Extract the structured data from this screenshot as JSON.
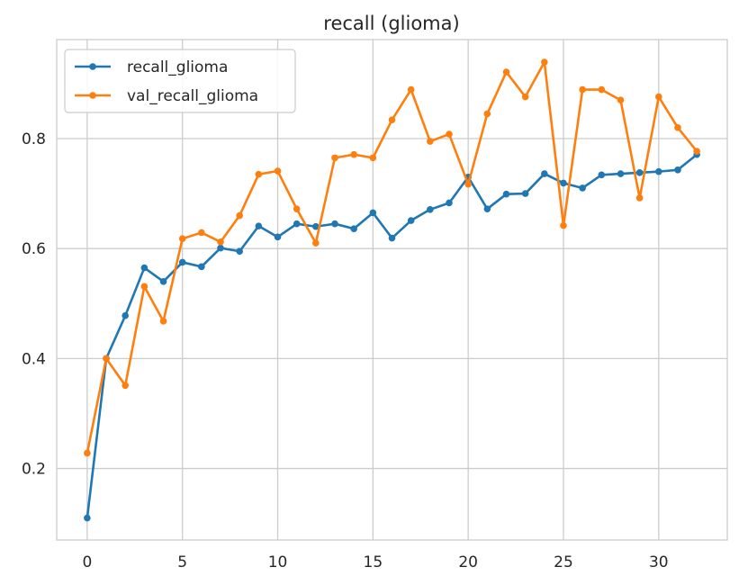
{
  "chart_data": {
    "type": "line",
    "title": "recall (glioma)",
    "xlabel": "",
    "ylabel": "",
    "xlim": [
      -1.6,
      33.6
    ],
    "ylim": [
      0.07,
      0.98
    ],
    "xticks": [
      0,
      5,
      10,
      15,
      20,
      25,
      30
    ],
    "yticks": [
      0.2,
      0.4,
      0.6,
      0.8
    ],
    "xtick_labels": [
      "0",
      "5",
      "10",
      "15",
      "20",
      "25",
      "30"
    ],
    "ytick_labels": [
      "0.2",
      "0.4",
      "0.6",
      "0.8"
    ],
    "grid": true,
    "legend_position": "upper-left",
    "x": [
      0,
      1,
      2,
      3,
      4,
      5,
      6,
      7,
      8,
      9,
      10,
      11,
      12,
      13,
      14,
      15,
      16,
      17,
      18,
      19,
      20,
      21,
      22,
      23,
      24,
      25,
      26,
      27,
      28,
      29,
      30,
      31,
      32
    ],
    "series": [
      {
        "name": "recall_glioma",
        "color": "#1f77b4",
        "values": [
          0.11,
          0.4,
          0.478,
          0.565,
          0.54,
          0.575,
          0.567,
          0.601,
          0.595,
          0.641,
          0.621,
          0.645,
          0.64,
          0.645,
          0.636,
          0.665,
          0.619,
          0.651,
          0.671,
          0.683,
          0.73,
          0.672,
          0.699,
          0.7,
          0.736,
          0.719,
          0.71,
          0.734,
          0.736,
          0.738,
          0.74,
          0.743,
          0.771
        ]
      },
      {
        "name": "val_recall_glioma",
        "color": "#ff7f0e",
        "values": [
          0.228,
          0.4,
          0.351,
          0.531,
          0.468,
          0.618,
          0.629,
          0.612,
          0.66,
          0.735,
          0.741,
          0.672,
          0.61,
          0.765,
          0.771,
          0.765,
          0.834,
          0.889,
          0.795,
          0.808,
          0.717,
          0.845,
          0.921,
          0.876,
          0.939,
          0.642,
          0.889,
          0.889,
          0.87,
          0.692,
          0.876,
          0.82,
          0.777
        ]
      }
    ]
  }
}
